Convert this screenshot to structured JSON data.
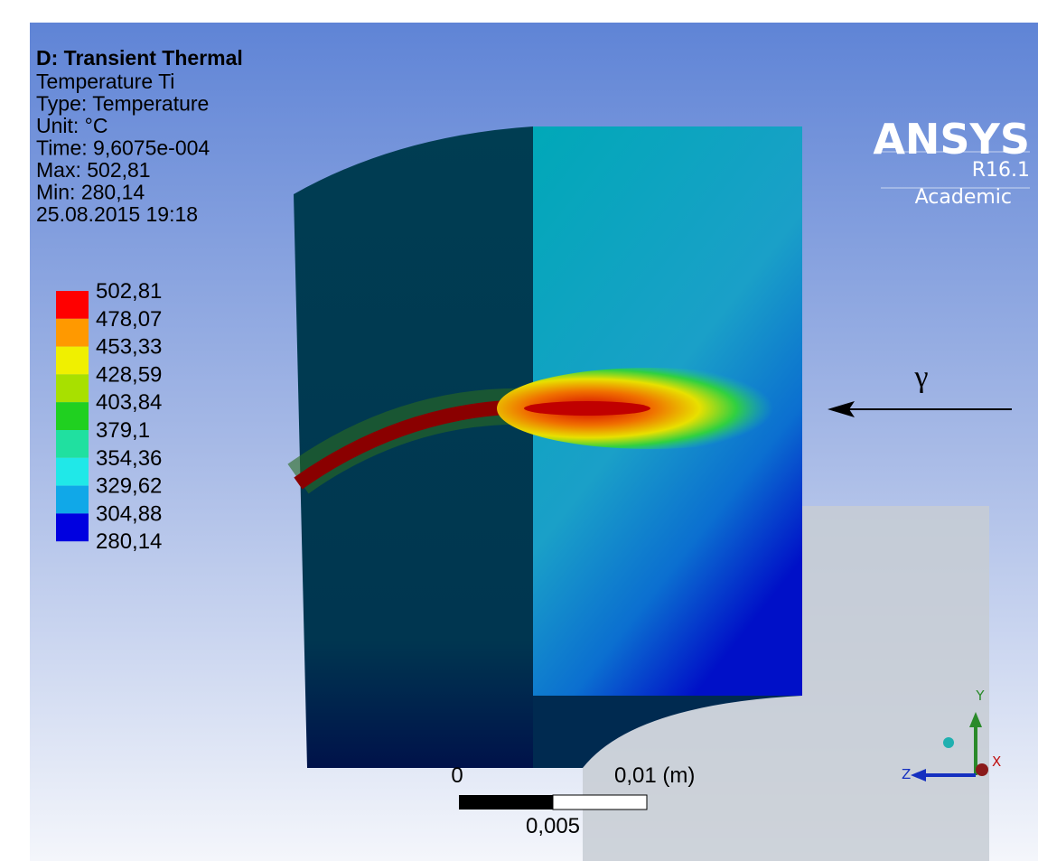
{
  "header": {
    "title": "D: Transient Thermal",
    "lines": [
      "Temperature Ti",
      "Type: Temperature",
      "Unit: °C",
      "Time: 9,6075e-004",
      "Max: 502,81",
      "Min: 280,14",
      "25.08.2015 19:18"
    ]
  },
  "legend": {
    "labels": [
      "502,81",
      "478,07",
      "453,33",
      "428,59",
      "403,84",
      "379,1",
      "354,36",
      "329,62",
      "304,88",
      "280,14"
    ]
  },
  "logo": {
    "brand": "ANSYS",
    "version": "R16.1",
    "edition": "Academic"
  },
  "annotation": {
    "symbol": "γ"
  },
  "scale_bar": {
    "start": "0",
    "end": "0,01 (m)",
    "middle": "0,005"
  },
  "triad": {
    "y": "Y",
    "z": "Z",
    "x": "X"
  }
}
